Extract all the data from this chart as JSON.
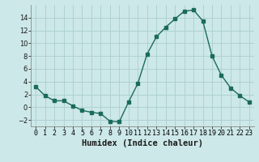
{
  "x": [
    0,
    1,
    2,
    3,
    4,
    5,
    6,
    7,
    8,
    9,
    10,
    11,
    12,
    13,
    14,
    15,
    16,
    17,
    18,
    19,
    20,
    21,
    22,
    23
  ],
  "y": [
    3.2,
    1.8,
    1.0,
    1.0,
    0.2,
    -0.5,
    -0.8,
    -1.0,
    -2.2,
    -2.3,
    0.8,
    3.7,
    8.3,
    11.0,
    12.5,
    13.8,
    15.0,
    15.2,
    13.5,
    8.0,
    5.0,
    3.0,
    1.8,
    0.8
  ],
  "line_color": "#1a6b5a",
  "marker": "s",
  "markersize": 2.5,
  "xlabel": "Humidex (Indice chaleur)",
  "xlim": [
    -0.5,
    23.5
  ],
  "ylim": [
    -3,
    16
  ],
  "yticks": [
    -2,
    0,
    2,
    4,
    6,
    8,
    10,
    12,
    14
  ],
  "xtick_labels": [
    "0",
    "1",
    "2",
    "3",
    "4",
    "5",
    "6",
    "7",
    "8",
    "9",
    "10",
    "11",
    "12",
    "13",
    "14",
    "15",
    "16",
    "17",
    "18",
    "19",
    "20",
    "21",
    "22",
    "23"
  ],
  "bg_color": "#cde8e8",
  "grid_color": "#aacece",
  "tick_fontsize": 6.0,
  "xlabel_fontsize": 7.5
}
